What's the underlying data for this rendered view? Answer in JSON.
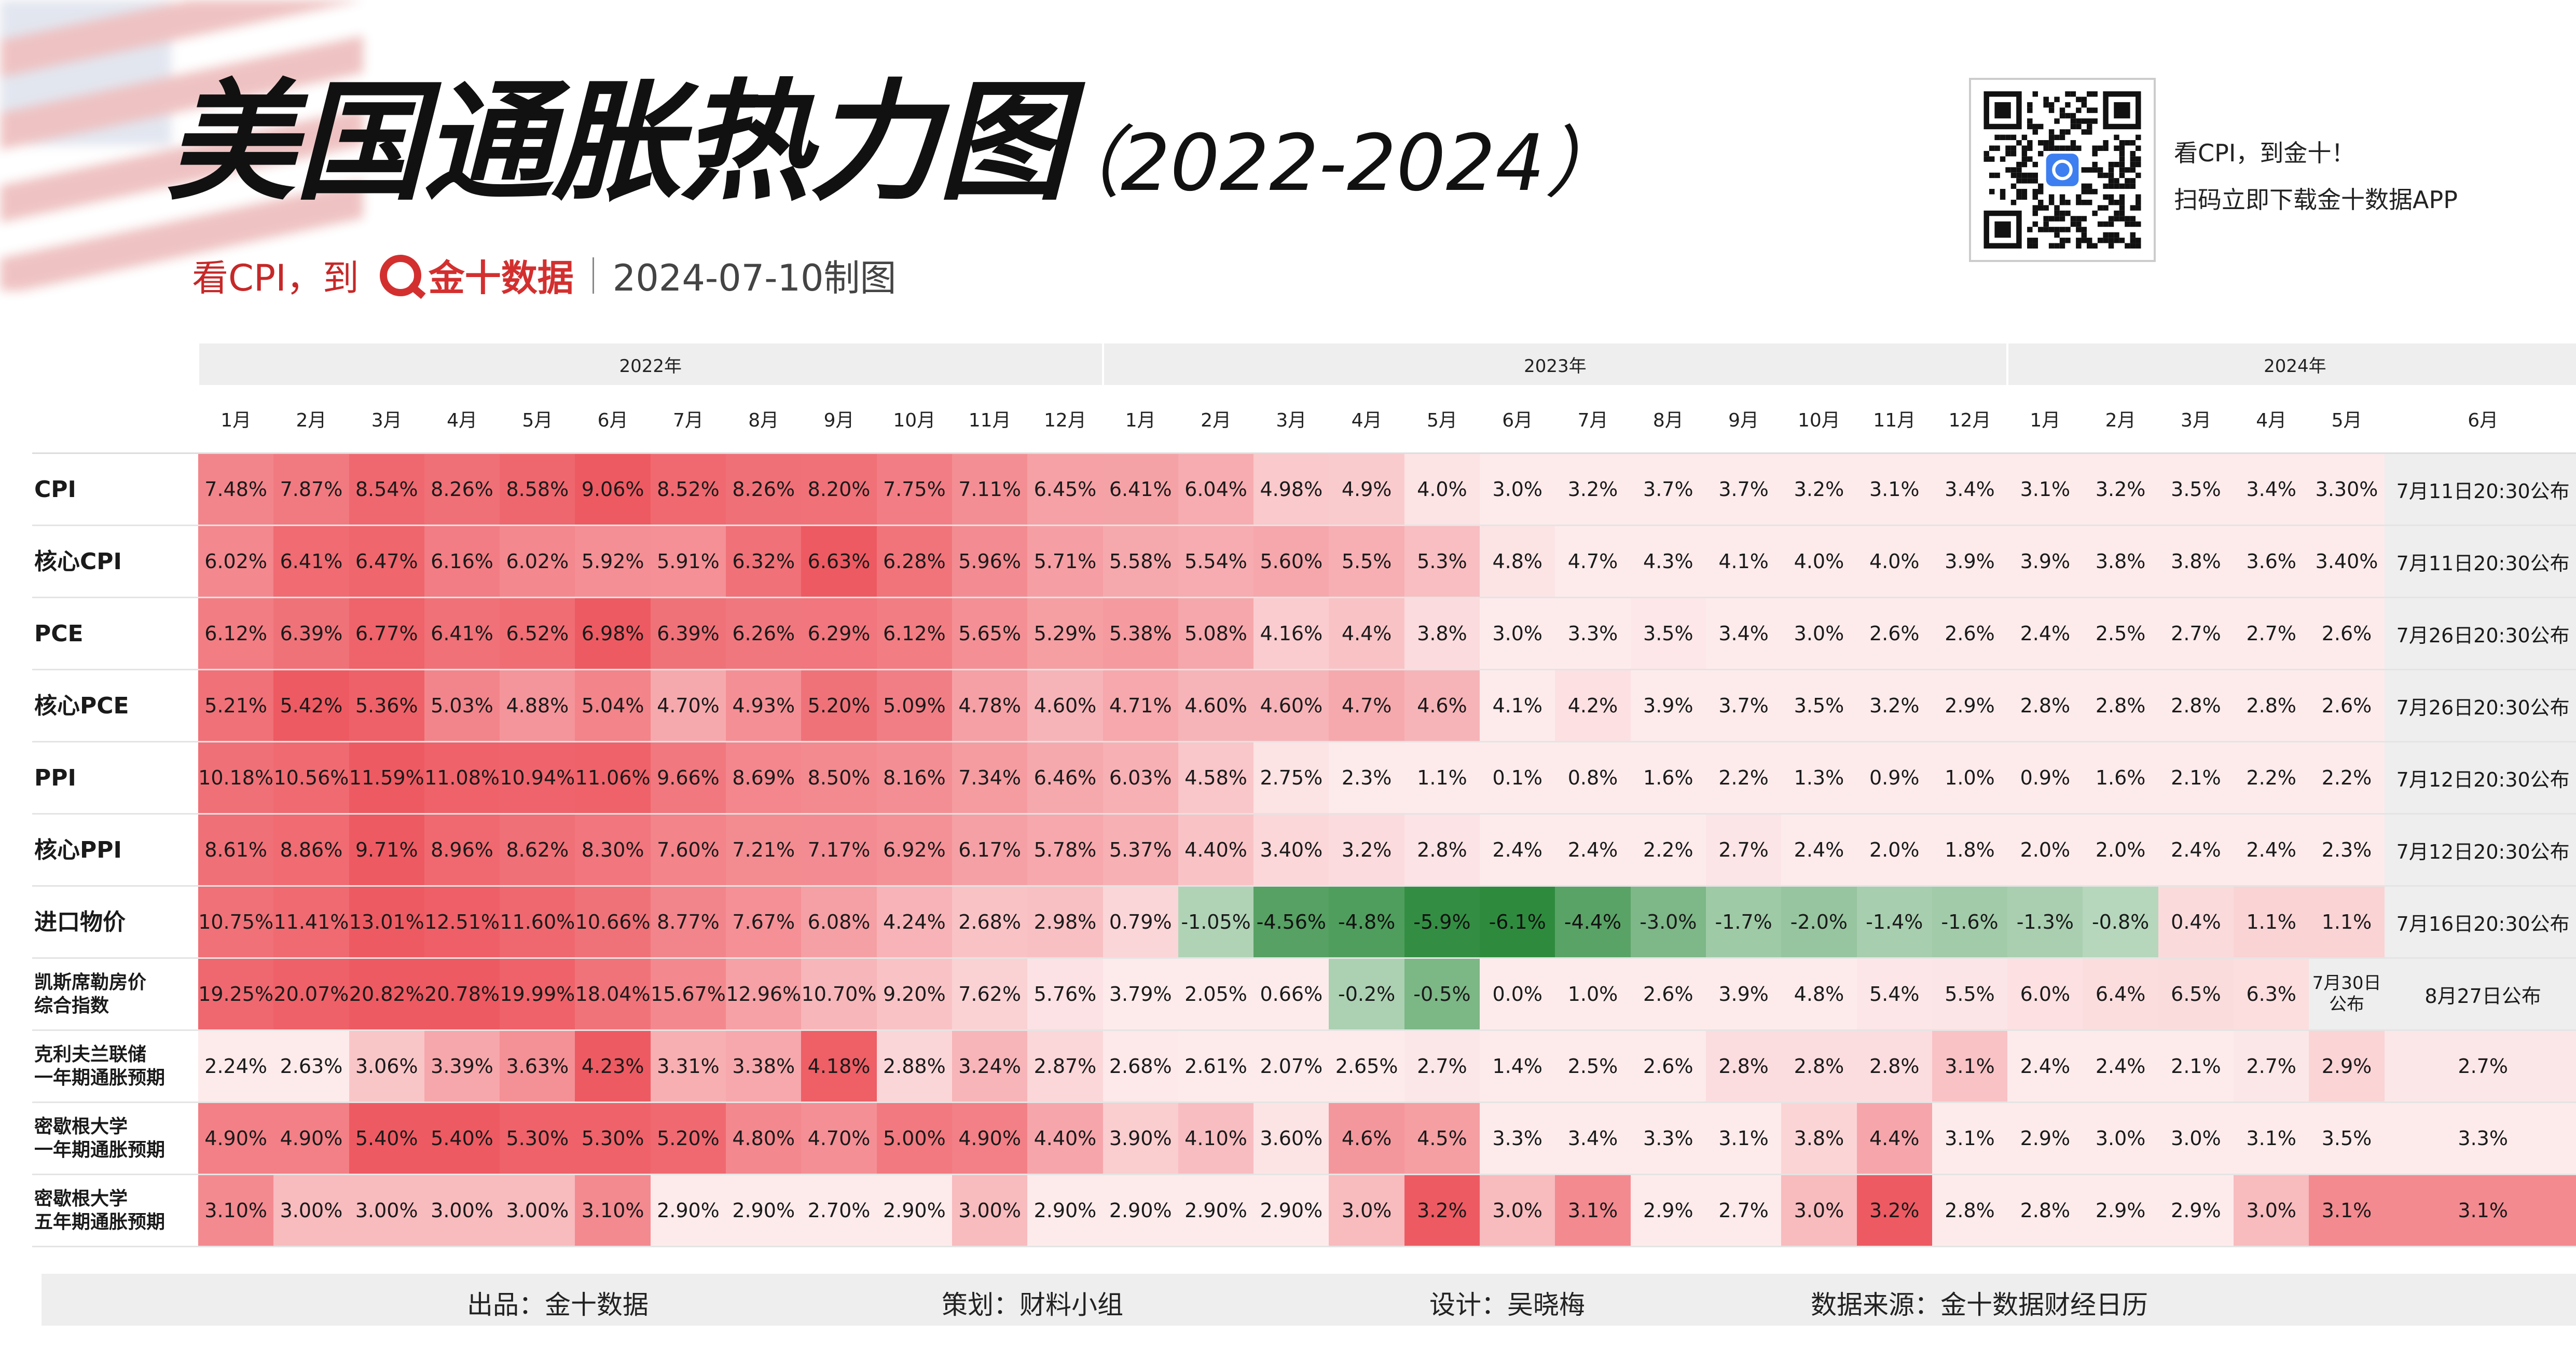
{
  "title": "美国通胀热力图",
  "years_range": "（2022-2024）",
  "subtitle": {
    "prefix": "看CPI，到",
    "brand": "金十数据",
    "date": "2024-07-10制图"
  },
  "qr": {
    "line1": "看CPI，到金十！",
    "line2": "扫码立即下载金十数据APP"
  },
  "year_headers": [
    {
      "label": "2022年",
      "span": 12
    },
    {
      "label": "2023年",
      "span": 12
    },
    {
      "label": "2024年",
      "span": 6
    }
  ],
  "months": [
    "1月",
    "2月",
    "3月",
    "4月",
    "5月",
    "6月",
    "7月",
    "8月",
    "9月",
    "10月",
    "11月",
    "12月",
    "1月",
    "2月",
    "3月",
    "4月",
    "5月",
    "6月",
    "7月",
    "8月",
    "9月",
    "10月",
    "11月",
    "12月",
    "1月",
    "2月",
    "3月",
    "4月",
    "5月",
    "6月"
  ],
  "rows": [
    {
      "label": "CPI",
      "values": [
        "7.48%",
        "7.87%",
        "8.54%",
        "8.26%",
        "8.58%",
        "9.06%",
        "8.52%",
        "8.26%",
        "8.20%",
        "7.75%",
        "7.11%",
        "6.45%",
        "6.41%",
        "6.04%",
        "4.98%",
        "4.9%",
        "4.0%",
        "3.0%",
        "3.2%",
        "3.7%",
        "3.7%",
        "3.2%",
        "3.1%",
        "3.4%",
        "3.1%",
        "3.2%",
        "3.5%",
        "3.4%",
        "3.30%",
        "7月11日20:30公布"
      ]
    },
    {
      "label": "核心CPI",
      "values": [
        "6.02%",
        "6.41%",
        "6.47%",
        "6.16%",
        "6.02%",
        "5.92%",
        "5.91%",
        "6.32%",
        "6.63%",
        "6.28%",
        "5.96%",
        "5.71%",
        "5.58%",
        "5.54%",
        "5.60%",
        "5.5%",
        "5.3%",
        "4.8%",
        "4.7%",
        "4.3%",
        "4.1%",
        "4.0%",
        "4.0%",
        "3.9%",
        "3.9%",
        "3.8%",
        "3.8%",
        "3.6%",
        "3.40%",
        "7月11日20:30公布"
      ]
    },
    {
      "label": "PCE",
      "values": [
        "6.12%",
        "6.39%",
        "6.77%",
        "6.41%",
        "6.52%",
        "6.98%",
        "6.39%",
        "6.26%",
        "6.29%",
        "6.12%",
        "5.65%",
        "5.29%",
        "5.38%",
        "5.08%",
        "4.16%",
        "4.4%",
        "3.8%",
        "3.0%",
        "3.3%",
        "3.5%",
        "3.4%",
        "3.0%",
        "2.6%",
        "2.6%",
        "2.4%",
        "2.5%",
        "2.7%",
        "2.7%",
        "2.6%",
        "7月26日20:30公布"
      ]
    },
    {
      "label": "核心PCE",
      "values": [
        "5.21%",
        "5.42%",
        "5.36%",
        "5.03%",
        "4.88%",
        "5.04%",
        "4.70%",
        "4.93%",
        "5.20%",
        "5.09%",
        "4.78%",
        "4.60%",
        "4.71%",
        "4.60%",
        "4.60%",
        "4.7%",
        "4.6%",
        "4.1%",
        "4.2%",
        "3.9%",
        "3.7%",
        "3.5%",
        "3.2%",
        "2.9%",
        "2.8%",
        "2.8%",
        "2.8%",
        "2.8%",
        "2.6%",
        "7月26日20:30公布"
      ]
    },
    {
      "label": "PPI",
      "values": [
        "10.18%",
        "10.56%",
        "11.59%",
        "11.08%",
        "10.94%",
        "11.06%",
        "9.66%",
        "8.69%",
        "8.50%",
        "8.16%",
        "7.34%",
        "6.46%",
        "6.03%",
        "4.58%",
        "2.75%",
        "2.3%",
        "1.1%",
        "0.1%",
        "0.8%",
        "1.6%",
        "2.2%",
        "1.3%",
        "0.9%",
        "1.0%",
        "0.9%",
        "1.6%",
        "2.1%",
        "2.2%",
        "2.2%",
        "7月12日20:30公布"
      ]
    },
    {
      "label": "核心PPI",
      "values": [
        "8.61%",
        "8.86%",
        "9.71%",
        "8.96%",
        "8.62%",
        "8.30%",
        "7.60%",
        "7.21%",
        "7.17%",
        "6.92%",
        "6.17%",
        "5.78%",
        "5.37%",
        "4.40%",
        "3.40%",
        "3.2%",
        "2.8%",
        "2.4%",
        "2.4%",
        "2.2%",
        "2.7%",
        "2.4%",
        "2.0%",
        "1.8%",
        "2.0%",
        "2.0%",
        "2.4%",
        "2.4%",
        "2.3%",
        "7月12日20:30公布"
      ]
    },
    {
      "label": "进口物价",
      "values": [
        "10.75%",
        "11.41%",
        "13.01%",
        "12.51%",
        "11.60%",
        "10.66%",
        "8.77%",
        "7.67%",
        "6.08%",
        "4.24%",
        "2.68%",
        "2.98%",
        "0.79%",
        "-1.05%",
        "-4.56%",
        "-4.8%",
        "-5.9%",
        "-6.1%",
        "-4.4%",
        "-3.0%",
        "-1.7%",
        "-2.0%",
        "-1.4%",
        "-1.6%",
        "-1.3%",
        "-0.8%",
        "0.4%",
        "1.1%",
        "1.1%",
        "7月16日20:30公布"
      ]
    },
    {
      "label": "凯斯席勒房价\n综合指数",
      "small": true,
      "values": [
        "19.25%",
        "20.07%",
        "20.82%",
        "20.78%",
        "19.99%",
        "18.04%",
        "15.67%",
        "12.96%",
        "10.70%",
        "9.20%",
        "7.62%",
        "5.76%",
        "3.79%",
        "2.05%",
        "0.66%",
        "-0.2%",
        "-0.5%",
        "0.0%",
        "1.0%",
        "2.6%",
        "3.9%",
        "4.8%",
        "5.4%",
        "5.5%",
        "6.0%",
        "6.4%",
        "6.5%",
        "6.3%",
        "7月30日\n公布",
        "8月27日公布"
      ]
    },
    {
      "label": "克利夫兰联储\n一年期通胀预期",
      "small": true,
      "values": [
        "2.24%",
        "2.63%",
        "3.06%",
        "3.39%",
        "3.63%",
        "4.23%",
        "3.31%",
        "3.38%",
        "4.18%",
        "2.88%",
        "3.24%",
        "2.87%",
        "2.68%",
        "2.61%",
        "2.07%",
        "2.65%",
        "2.7%",
        "1.4%",
        "2.5%",
        "2.6%",
        "2.8%",
        "2.8%",
        "2.8%",
        "3.1%",
        "2.4%",
        "2.4%",
        "2.1%",
        "2.7%",
        "2.9%",
        "2.7%"
      ]
    },
    {
      "label": "密歇根大学\n一年期通胀预期",
      "small": true,
      "values": [
        "4.90%",
        "4.90%",
        "5.40%",
        "5.40%",
        "5.30%",
        "5.30%",
        "5.20%",
        "4.80%",
        "4.70%",
        "5.00%",
        "4.90%",
        "4.40%",
        "3.90%",
        "4.10%",
        "3.60%",
        "4.6%",
        "4.5%",
        "3.3%",
        "3.4%",
        "3.3%",
        "3.1%",
        "3.8%",
        "4.4%",
        "3.1%",
        "2.9%",
        "3.0%",
        "3.0%",
        "3.1%",
        "3.5%",
        "3.3%"
      ]
    },
    {
      "label": "密歇根大学\n五年期通胀预期",
      "small": true,
      "values": [
        "3.10%",
        "3.00%",
        "3.00%",
        "3.00%",
        "3.00%",
        "3.10%",
        "2.90%",
        "2.90%",
        "2.70%",
        "2.90%",
        "3.00%",
        "2.90%",
        "2.90%",
        "2.90%",
        "2.90%",
        "3.0%",
        "3.2%",
        "3.0%",
        "3.1%",
        "2.9%",
        "2.7%",
        "3.0%",
        "3.2%",
        "2.8%",
        "2.8%",
        "2.9%",
        "2.9%",
        "3.0%",
        "3.1%",
        "3.1%"
      ]
    }
  ],
  "footer": {
    "producer": "出品：金十数据",
    "planner": "策划：财料小组",
    "designer": "设计：吴晓梅",
    "source": "数据来源：金十数据财经日历"
  },
  "colors": {
    "hot": "#ee5a62",
    "neutral": "#ffffff",
    "cold": "#2e8b3e",
    "schedule_bg": "#eeeeee",
    "brand_red": "#d32f2f"
  }
}
